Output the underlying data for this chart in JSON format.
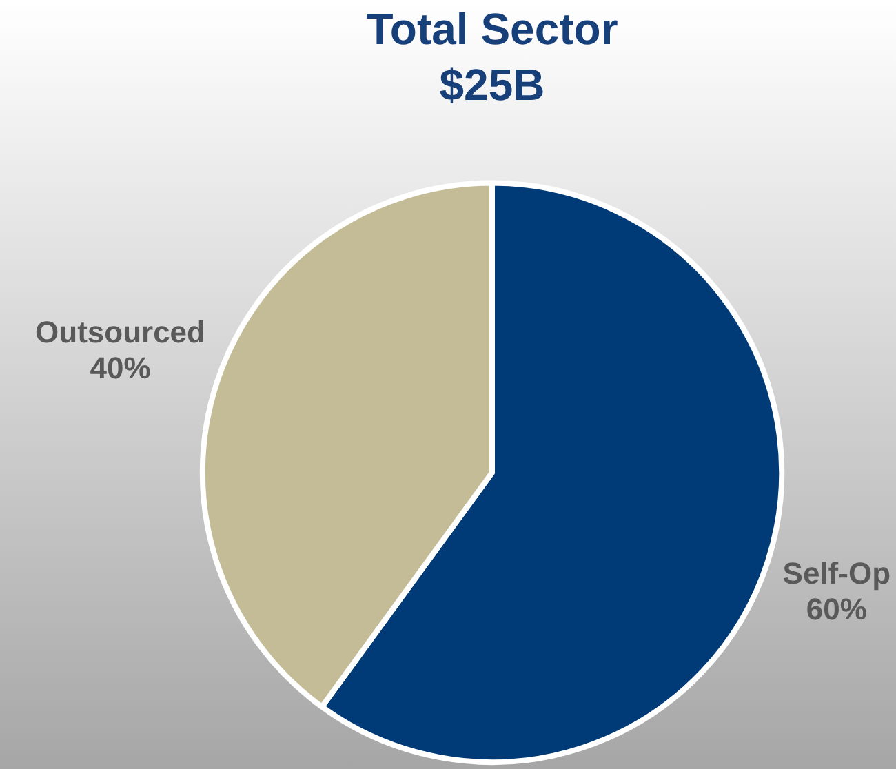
{
  "chart_data": {
    "type": "pie",
    "title": "Total Sector",
    "subtitle": "$25B",
    "categories": [
      "Self-Op",
      "Outsourced"
    ],
    "values": [
      60,
      40
    ],
    "colors": [
      "#003b78",
      "#c4bc96"
    ],
    "value_labels": [
      "60%",
      "40%"
    ],
    "legend": false
  }
}
